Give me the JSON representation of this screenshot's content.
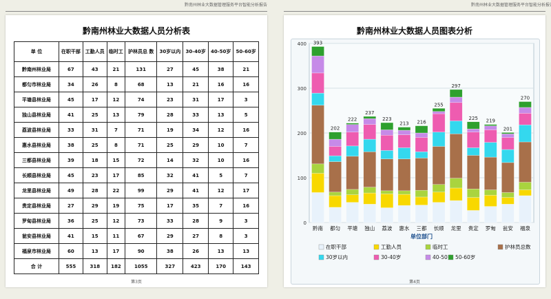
{
  "left_page": {
    "header": "黔南州林业大数据管理服务平台智能分析报告",
    "title": "黔南州林业大数据人员分析表",
    "page_number": "第3页",
    "columns": [
      "单  位",
      "在职干部",
      "工勤人员",
      "临时工",
      "护林员总 数",
      "30岁以内",
      "30-40岁",
      "40-50岁",
      "50-60岁"
    ],
    "rows": [
      {
        "unit": "黔南州林业局",
        "values": [
          "67",
          "43",
          "21",
          "131",
          "27",
          "45",
          "38",
          "21"
        ]
      },
      {
        "unit": "都匀市林业局",
        "values": [
          "34",
          "26",
          "8",
          "68",
          "13",
          "21",
          "16",
          "16"
        ]
      },
      {
        "unit": "平塘县林业局",
        "values": [
          "45",
          "17",
          "12",
          "74",
          "23",
          "31",
          "17",
          "3"
        ]
      },
      {
        "unit": "独山县林业局",
        "values": [
          "41",
          "25",
          "13",
          "79",
          "28",
          "33",
          "13",
          "5"
        ]
      },
      {
        "unit": "荔波县林业局",
        "values": [
          "33",
          "31",
          "7",
          "71",
          "19",
          "34",
          "12",
          "16"
        ]
      },
      {
        "unit": "惠水县林业局",
        "values": [
          "38",
          "25",
          "8",
          "71",
          "25",
          "29",
          "10",
          "7"
        ]
      },
      {
        "unit": "三都县林业局",
        "values": [
          "39",
          "18",
          "15",
          "72",
          "14",
          "32",
          "10",
          "16"
        ]
      },
      {
        "unit": "长顺县林业局",
        "values": [
          "45",
          "23",
          "17",
          "85",
          "32",
          "41",
          "5",
          "7"
        ]
      },
      {
        "unit": "龙里县林业局",
        "values": [
          "49",
          "28",
          "22",
          "99",
          "29",
          "41",
          "12",
          "17"
        ]
      },
      {
        "unit": "贵定县林业局",
        "values": [
          "27",
          "29",
          "19",
          "75",
          "17",
          "35",
          "7",
          "16"
        ]
      },
      {
        "unit": "罗甸县林业局",
        "values": [
          "36",
          "25",
          "12",
          "73",
          "33",
          "28",
          "9",
          "3"
        ]
      },
      {
        "unit": "瓮安县林业局",
        "values": [
          "41",
          "15",
          "11",
          "67",
          "29",
          "27",
          "8",
          "3"
        ]
      },
      {
        "unit": "福泉市林业局",
        "values": [
          "60",
          "13",
          "17",
          "90",
          "38",
          "26",
          "13",
          "13"
        ]
      }
    ],
    "total": {
      "unit": "合  计",
      "values": [
        "555",
        "318",
        "182",
        "1055",
        "327",
        "423",
        "170",
        "143"
      ]
    }
  },
  "right_page": {
    "header": "黔南州林业大数据管理服务平台智能分析报告",
    "title": "黔南州林业大数据人员图表分析",
    "page_number": "第4页"
  },
  "chart_data": {
    "type": "bar",
    "stacked": true,
    "title": "黔南州林业大数据人员图表分析",
    "xlabel": "单位部门",
    "ylabel": "",
    "ylim": [
      0,
      400
    ],
    "yticks": [
      0,
      100,
      200,
      300,
      400
    ],
    "grid": true,
    "legend_position": "bottom",
    "categories": [
      "黔南",
      "都匀",
      "平塘",
      "独山",
      "荔波",
      "惠水",
      "三都",
      "长顺",
      "龙里",
      "贵定",
      "罗甸",
      "瓮安",
      "福泉"
    ],
    "totals": [
      393,
      202,
      222,
      237,
      223,
      213,
      216,
      255,
      297,
      225,
      219,
      201,
      270
    ],
    "series": [
      {
        "name": "在职干部",
        "color": "#e8f2fb",
        "values": [
          67,
          34,
          45,
          41,
          33,
          38,
          39,
          45,
          49,
          27,
          36,
          41,
          60
        ]
      },
      {
        "name": "工勤人员",
        "color": "#f8d800",
        "values": [
          43,
          26,
          17,
          25,
          31,
          25,
          18,
          23,
          28,
          29,
          25,
          15,
          13
        ]
      },
      {
        "name": "临时工",
        "color": "#a9d43f",
        "values": [
          21,
          8,
          12,
          13,
          7,
          8,
          15,
          17,
          22,
          19,
          12,
          11,
          17
        ]
      },
      {
        "name": "护林员总数",
        "color": "#a8704a",
        "values": [
          131,
          68,
          74,
          79,
          71,
          71,
          72,
          85,
          99,
          75,
          73,
          67,
          90
        ]
      },
      {
        "name": "30岁以内",
        "color": "#34d8ee",
        "values": [
          27,
          13,
          23,
          28,
          19,
          25,
          14,
          32,
          29,
          17,
          33,
          29,
          38
        ]
      },
      {
        "name": "30-40岁",
        "color": "#ee5cb0",
        "values": [
          45,
          21,
          31,
          33,
          34,
          29,
          32,
          41,
          41,
          35,
          28,
          27,
          26
        ]
      },
      {
        "name": "40-50岁",
        "color": "#c68ae8",
        "values": [
          38,
          16,
          17,
          13,
          12,
          10,
          10,
          5,
          12,
          7,
          9,
          8,
          13
        ]
      },
      {
        "name": "50-60岁",
        "color": "#2ea02e",
        "values": [
          21,
          16,
          3,
          5,
          16,
          7,
          16,
          7,
          17,
          16,
          3,
          3,
          13
        ]
      }
    ]
  }
}
